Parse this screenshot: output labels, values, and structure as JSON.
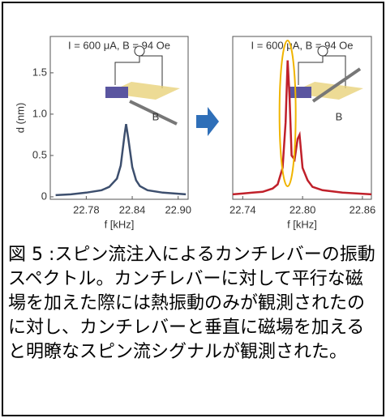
{
  "chart_data": [
    {
      "type": "line",
      "title": "I = 600 μA, B = 94 Oe",
      "x_label": "f [kHz]",
      "y_label": "d (nm)",
      "annotation": "B",
      "x": [
        22.74,
        22.76,
        22.78,
        22.8,
        22.81,
        22.82,
        22.825,
        22.83,
        22.832,
        22.835,
        22.84,
        22.845,
        22.85,
        22.86,
        22.88,
        22.91
      ],
      "series": [
        {
          "color": "#3d4f6e",
          "values": [
            0.02,
            0.03,
            0.05,
            0.08,
            0.12,
            0.22,
            0.38,
            0.75,
            0.88,
            0.7,
            0.36,
            0.2,
            0.13,
            0.08,
            0.05,
            0.03
          ]
        }
      ],
      "xlim": [
        22.733,
        22.913
      ],
      "ylim": [
        -0.03,
        1.94
      ],
      "xticks": [
        22.78,
        22.84,
        {
          "value": 22.9,
          "label": "22.90"
        }
      ],
      "yticks": [
        0,
        0.5,
        {
          "value": 1,
          "label": "1.0"
        },
        1.5
      ]
    },
    {
      "type": "line",
      "title": "I = 600 μA, B = 94 Oe",
      "x_label": "f [kHz]",
      "annotation": "B",
      "x": [
        22.73,
        22.74,
        22.75,
        22.76,
        22.77,
        22.775,
        22.78,
        22.783,
        22.785,
        22.787,
        22.789,
        22.792,
        22.795,
        22.797,
        22.8,
        22.805,
        22.81,
        22.82,
        22.84,
        22.869
      ],
      "series": [
        {
          "color": "#c0202a",
          "values": [
            0.03,
            0.04,
            0.05,
            0.06,
            0.1,
            0.15,
            0.35,
            0.9,
            1.65,
            1.2,
            0.5,
            0.45,
            0.7,
            0.75,
            0.35,
            0.2,
            0.12,
            0.08,
            0.05,
            0.03
          ]
        }
      ],
      "xlim": [
        22.73,
        22.869
      ],
      "ylim": [
        -0.03,
        1.94
      ],
      "xticks": [
        22.74,
        {
          "value": 22.8,
          "label": "22.80"
        },
        22.86
      ]
    }
  ],
  "caption": "図 5 :スピン流注入によるカンチレバーの振動スペクトル。カンチレバーに対して平行な磁場を加えた際には熱振動のみが観測されたのに対し、カンチレバーと垂直に磁場を加えると明瞭なスピン流シグナルが観測された。"
}
